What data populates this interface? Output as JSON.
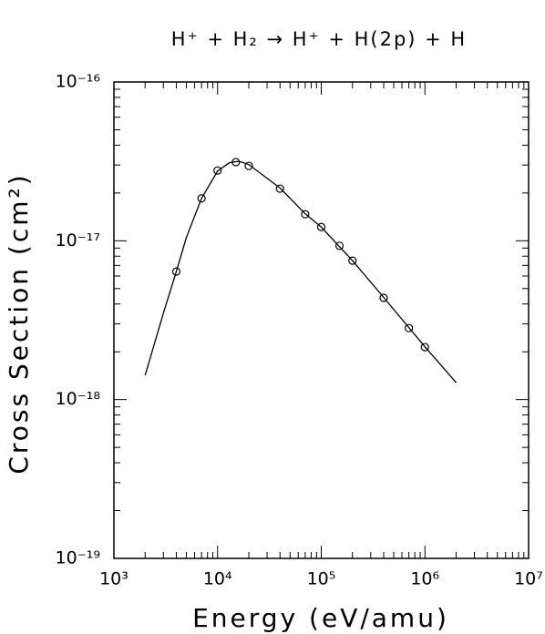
{
  "chart_data": {
    "type": "scatter",
    "title": "H⁺ + H₂ → H⁺ + H(2p) + H",
    "x_label": "Energy (eV/amu)",
    "y_label": "Cross Section (cm²)",
    "xscale": "log",
    "yscale": "log",
    "xlim": [
      1000,
      10000000
    ],
    "ylim": [
      1e-19,
      1e-16
    ],
    "xticks": [
      {
        "value": 1000,
        "label": "10³"
      },
      {
        "value": 10000,
        "label": "10⁴"
      },
      {
        "value": 100000,
        "label": "10⁵"
      },
      {
        "value": 1000000,
        "label": "10⁶"
      },
      {
        "value": 10000000,
        "label": "10⁷"
      }
    ],
    "yticks": [
      {
        "value": 1e-19,
        "label": "10⁻¹⁹"
      },
      {
        "value": 1e-18,
        "label": "10⁻¹⁸"
      },
      {
        "value": 1e-17,
        "label": "10⁻¹⁷"
      },
      {
        "value": 1e-16,
        "label": "10⁻¹⁶"
      }
    ],
    "minor_ticks": true,
    "series": [
      {
        "style": "marker",
        "color": "#000000",
        "x": [
          4000,
          7000,
          10000,
          15000,
          20000,
          40000,
          70000,
          100000,
          150000,
          200000,
          400000,
          700000,
          1000000
        ],
        "values": [
          6.4e-18,
          1.85e-17,
          2.77e-17,
          3.13e-17,
          2.96e-17,
          2.13e-17,
          1.47e-17,
          1.22e-17,
          9.3e-18,
          7.5e-18,
          4.37e-18,
          2.82e-18,
          2.14e-18
        ]
      },
      {
        "style": "line",
        "color": "#000000",
        "x": [
          2000,
          3000,
          4000,
          5000,
          7000,
          10000,
          13000,
          16000,
          20000,
          40000,
          70000,
          100000,
          200000,
          400000,
          1000000,
          2000000
        ],
        "values": [
          1.42e-18,
          3.5e-18,
          6.4e-18,
          1.05e-17,
          1.85e-17,
          2.75e-17,
          3.1e-17,
          3.17e-17,
          3.02e-17,
          2.15e-17,
          1.48e-17,
          1.22e-17,
          7.5e-18,
          4.4e-18,
          2.15e-18,
          1.28e-18
        ]
      }
    ]
  }
}
